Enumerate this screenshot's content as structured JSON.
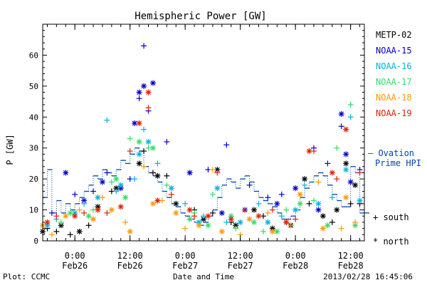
{
  "chart_data": {
    "type": "scatter",
    "title": "Hemispheric Power [GW]",
    "ylabel": "P [GW]",
    "xlabel": "Date and Time",
    "ylim": [
      0,
      70
    ],
    "yticks": [
      0,
      10,
      20,
      30,
      40,
      50,
      60
    ],
    "xlim": [
      "2013-02-25T17:00",
      "2013-02-28T15:00"
    ],
    "xticks": [
      {
        "time": "2013-02-26T00:00",
        "label1": "0:00",
        "label2": "Feb26"
      },
      {
        "time": "2013-02-26T12:00",
        "label1": "12:00",
        "label2": "Feb26"
      },
      {
        "time": "2013-02-27T00:00",
        "label1": "0:00",
        "label2": "Feb27"
      },
      {
        "time": "2013-02-27T12:00",
        "label1": "12:00",
        "label2": "Feb27"
      },
      {
        "time": "2013-02-28T00:00",
        "label1": "0:00",
        "label2": "Feb28"
      },
      {
        "time": "2013-02-28T12:00",
        "label1": "12:00",
        "label2": "Feb28"
      }
    ],
    "legend": {
      "placement": "right",
      "satellites": [
        {
          "name": "METP-02",
          "color": "#000000"
        },
        {
          "name": "NOAA-15",
          "color": "#0000cc"
        },
        {
          "name": "NOAA-16",
          "color": "#00b4dc"
        },
        {
          "name": "NOAA-17",
          "color": "#33dd66"
        },
        {
          "name": "NOAA-18",
          "color": "#ff9900"
        },
        {
          "name": "NOAA-19",
          "color": "#dd2200"
        }
      ],
      "ovation_label_1": "— Ovation",
      "ovation_label_2": "Prime HPI",
      "ovation_color": "#0044aa",
      "south_label": "+ south",
      "north_label": "* north"
    },
    "ovation_prime_hpi": {
      "x": [
        "2013-02-25T17:00",
        "2013-02-25T18:00",
        "2013-02-25T19:00",
        "2013-02-25T20:00",
        "2013-02-25T21:00",
        "2013-02-25T22:00",
        "2013-02-25T23:00",
        "2013-02-26T00:00",
        "2013-02-26T01:00",
        "2013-02-26T02:00",
        "2013-02-26T03:00",
        "2013-02-26T04:00",
        "2013-02-26T05:00",
        "2013-02-26T06:00",
        "2013-02-26T07:00",
        "2013-02-26T08:00",
        "2013-02-26T09:00",
        "2013-02-26T10:00",
        "2013-02-26T11:00",
        "2013-02-26T12:00",
        "2013-02-26T13:00",
        "2013-02-26T14:00",
        "2013-02-26T15:00",
        "2013-02-26T16:00",
        "2013-02-26T17:00",
        "2013-02-26T18:00",
        "2013-02-26T19:00",
        "2013-02-26T20:00",
        "2013-02-26T21:00",
        "2013-02-26T22:00",
        "2013-02-26T23:00",
        "2013-02-27T00:00",
        "2013-02-27T01:00",
        "2013-02-27T02:00",
        "2013-02-27T03:00",
        "2013-02-27T04:00",
        "2013-02-27T05:00",
        "2013-02-27T06:00",
        "2013-02-27T07:00",
        "2013-02-27T08:00",
        "2013-02-27T09:00",
        "2013-02-27T10:00",
        "2013-02-27T11:00",
        "2013-02-27T12:00",
        "2013-02-27T13:00",
        "2013-02-27T14:00",
        "2013-02-27T15:00",
        "2013-02-27T16:00",
        "2013-02-27T17:00",
        "2013-02-27T18:00",
        "2013-02-27T19:00",
        "2013-02-27T20:00",
        "2013-02-27T21:00",
        "2013-02-27T22:00",
        "2013-02-27T23:00",
        "2013-02-28T00:00",
        "2013-02-28T01:00",
        "2013-02-28T02:00",
        "2013-02-28T03:00",
        "2013-02-28T04:00",
        "2013-02-28T05:00",
        "2013-02-28T06:00",
        "2013-02-28T07:00",
        "2013-02-28T08:00",
        "2013-02-28T09:00",
        "2013-02-28T10:00",
        "2013-02-28T11:00",
        "2013-02-28T12:00",
        "2013-02-28T13:00",
        "2013-02-28T14:00",
        "2013-02-28T15:00"
      ],
      "y": [
        14,
        23,
        9,
        13,
        9,
        12,
        10,
        12,
        14,
        16,
        18,
        21,
        20,
        23,
        22,
        21,
        23,
        26,
        25,
        28,
        30,
        29,
        24,
        22,
        21,
        19,
        16,
        14,
        12,
        11,
        9,
        8,
        7,
        6,
        5,
        6,
        8,
        10,
        14,
        18,
        20,
        19,
        17,
        20,
        21,
        19,
        16,
        14,
        13,
        12,
        11,
        9,
        7,
        7,
        8,
        10,
        14,
        17,
        19,
        21,
        22,
        21,
        18,
        15,
        13,
        11,
        11,
        24,
        22,
        9,
        9
      ]
    },
    "series": [
      {
        "name": "METP-02",
        "marker": "south",
        "x": [
          "2013-02-25T18:00",
          "2013-02-25T20:00",
          "2013-02-25T23:00",
          "2013-02-26T03:00",
          "2013-02-26T08:00",
          "2013-02-26T15:00",
          "2013-02-26T17:00",
          "2013-02-26T20:00",
          "2013-02-27T02:00",
          "2013-02-27T06:00",
          "2013-02-27T10:00",
          "2013-02-27T17:00",
          "2013-02-27T22:00",
          "2013-02-28T03:00",
          "2013-02-28T08:00",
          "2013-02-28T12:00",
          "2013-02-28T14:00"
        ],
        "y": [
          4,
          3,
          2,
          5,
          16,
          29,
          22,
          21,
          10,
          9,
          6,
          8,
          6,
          12,
          6,
          12,
          12
        ]
      },
      {
        "name": "METP-02",
        "marker": "north",
        "x": [
          "2013-02-25T17:00",
          "2013-02-25T21:00",
          "2013-02-26T01:00",
          "2013-02-26T05:00",
          "2013-02-26T09:00",
          "2013-02-26T14:00",
          "2013-02-26T18:00",
          "2013-02-26T22:00",
          "2013-02-27T04:00",
          "2013-02-27T07:00",
          "2013-02-27T11:00",
          "2013-02-27T15:00",
          "2013-02-27T19:00",
          "2013-02-27T23:00",
          "2013-02-28T02:00",
          "2013-02-28T06:00",
          "2013-02-28T09:00",
          "2013-02-28T11:00",
          "2013-02-28T13:00"
        ],
        "y": [
          3,
          5,
          3,
          11,
          17,
          25,
          21,
          12,
          7,
          23,
          5,
          10,
          4,
          5,
          20,
          8,
          10,
          25,
          18
        ]
      },
      {
        "name": "NOAA-15",
        "marker": "south",
        "x": [
          "2013-02-25T19:00",
          "2013-02-26T00:00",
          "2013-02-26T04:00",
          "2013-02-26T07:00",
          "2013-02-26T12:00",
          "2013-02-26T14:00",
          "2013-02-26T15:00",
          "2013-02-26T16:00",
          "2013-02-26T20:00",
          "2013-02-27T05:00",
          "2013-02-27T09:00",
          "2013-02-27T14:00",
          "2013-02-27T18:00",
          "2013-02-27T21:00",
          "2013-02-28T04:00",
          "2013-02-28T07:00",
          "2013-02-28T10:00",
          "2013-02-28T14:00"
        ],
        "y": [
          9,
          15,
          16,
          22,
          20,
          46,
          63,
          42,
          32,
          23,
          31,
          18,
          14,
          15,
          30,
          25,
          37,
          23
        ]
      },
      {
        "name": "NOAA-15",
        "marker": "north",
        "x": [
          "2013-02-25T22:00",
          "2013-02-26T02:00",
          "2013-02-26T06:00",
          "2013-02-26T10:00",
          "2013-02-26T13:00",
          "2013-02-26T14:00",
          "2013-02-26T15:00",
          "2013-02-26T17:00",
          "2013-02-27T01:00",
          "2013-02-27T08:00",
          "2013-02-27T13:00",
          "2013-02-27T20:00",
          "2013-02-28T00:00",
          "2013-02-28T05:00",
          "2013-02-28T10:00",
          "2013-02-28T11:00",
          "2013-02-28T12:00"
        ],
        "y": [
          22,
          13,
          19,
          17,
          38,
          48,
          50,
          51,
          22,
          9,
          10,
          12,
          17,
          10,
          41,
          28,
          19
        ]
      },
      {
        "name": "NOAA-16",
        "marker": "south",
        "x": [
          "2013-02-25T20:00",
          "2013-02-26T02:00",
          "2013-02-26T07:00",
          "2013-02-26T09:00",
          "2013-02-26T13:00",
          "2013-02-26T15:00",
          "2013-02-26T18:00",
          "2013-02-27T00:00",
          "2013-02-27T04:00",
          "2013-02-27T09:00",
          "2013-02-27T16:00",
          "2013-02-27T21:00",
          "2013-02-28T02:00",
          "2013-02-28T08:00",
          "2013-02-28T12:00"
        ],
        "y": [
          7,
          12,
          39,
          16,
          20,
          36,
          25,
          12,
          8,
          6,
          12,
          8,
          18,
          14,
          40
        ]
      },
      {
        "name": "NOAA-16",
        "marker": "north",
        "x": [
          "2013-02-25T18:00",
          "2013-02-26T00:00",
          "2013-02-26T05:00",
          "2013-02-26T10:00",
          "2013-02-26T14:00",
          "2013-02-26T16:00",
          "2013-02-26T21:00",
          "2013-02-27T03:00",
          "2013-02-27T07:00",
          "2013-02-27T12:00",
          "2013-02-27T18:00",
          "2013-02-28T00:00",
          "2013-02-28T05:00",
          "2013-02-28T11:00",
          "2013-02-28T14:00"
        ],
        "y": [
          5,
          9,
          14,
          18,
          28,
          32,
          17,
          6,
          17,
          6,
          6,
          10,
          12,
          23,
          13
        ]
      },
      {
        "name": "NOAA-17",
        "marker": "south",
        "x": [
          "2013-02-25T21:00",
          "2013-02-26T04:00",
          "2013-02-26T08:00",
          "2013-02-26T12:00",
          "2013-02-26T16:00",
          "2013-02-26T20:00",
          "2013-02-27T02:00",
          "2013-02-27T06:00",
          "2013-02-27T11:00",
          "2013-02-27T17:00",
          "2013-02-27T22:00",
          "2013-02-28T04:00",
          "2013-02-28T09:00",
          "2013-02-28T12:00"
        ],
        "y": [
          6,
          10,
          19,
          33,
          30,
          18,
          9,
          15,
          4,
          3,
          10,
          13,
          30,
          44
        ]
      },
      {
        "name": "NOAA-17",
        "marker": "north",
        "x": [
          "2013-02-25T23:00",
          "2013-02-26T03:00",
          "2013-02-26T09:00",
          "2013-02-26T11:00",
          "2013-02-26T14:00",
          "2013-02-26T17:00",
          "2013-02-27T01:00",
          "2013-02-27T05:00",
          "2013-02-27T10:00",
          "2013-02-27T15:00",
          "2013-02-27T20:00",
          "2013-02-28T01:00",
          "2013-02-28T07:00",
          "2013-02-28T13:00"
        ],
        "y": [
          9,
          8,
          20,
          14,
          32,
          30,
          7,
          5,
          8,
          6,
          3,
          12,
          5,
          5
        ]
      },
      {
        "name": "NOAA-18",
        "marker": "south",
        "x": [
          "2013-02-25T19:00",
          "2013-02-26T01:00",
          "2013-02-26T06:00",
          "2013-02-26T11:00",
          "2013-02-26T15:00",
          "2013-02-26T19:00",
          "2013-02-27T00:00",
          "2013-02-27T06:00",
          "2013-02-27T12:00",
          "2013-02-27T18:00",
          "2013-02-27T23:00",
          "2013-02-28T05:00",
          "2013-02-28T10:00",
          "2013-02-28T13:00"
        ],
        "y": [
          2,
          10,
          14,
          6,
          24,
          13,
          4,
          23,
          2,
          9,
          5,
          19,
          4,
          6
        ]
      },
      {
        "name": "NOAA-18",
        "marker": "north",
        "x": [
          "2013-02-25T17:00",
          "2013-02-25T22:00",
          "2013-02-26T04:00",
          "2013-02-26T08:00",
          "2013-02-26T12:00",
          "2013-02-26T17:00",
          "2013-02-26T22:00",
          "2013-02-27T03:00",
          "2013-02-27T08:00",
          "2013-02-27T14:00",
          "2013-02-27T19:00",
          "2013-02-28T01:00",
          "2013-02-28T06:00",
          "2013-02-28T11:00"
        ],
        "y": [
          5,
          8,
          7,
          10,
          3,
          12,
          9,
          5,
          3,
          7,
          3,
          15,
          4,
          14
        ]
      },
      {
        "name": "NOAA-19",
        "marker": "south",
        "x": [
          "2013-02-25T20:00",
          "2013-02-26T02:00",
          "2013-02-26T07:00",
          "2013-02-26T12:00",
          "2013-02-26T16:00",
          "2013-02-26T21:00",
          "2013-02-27T02:00",
          "2013-02-27T07:00",
          "2013-02-27T13:00",
          "2013-02-27T19:00",
          "2013-02-28T00:00",
          "2013-02-28T04:00",
          "2013-02-28T09:00",
          "2013-02-28T14:00"
        ],
        "y": [
          8,
          9,
          9,
          29,
          43,
          15,
          8,
          22,
          10,
          10,
          7,
          29,
          20,
          22
        ]
      },
      {
        "name": "NOAA-19",
        "marker": "north",
        "x": [
          "2013-02-25T18:00",
          "2013-02-26T00:00",
          "2013-02-26T05:00",
          "2013-02-26T10:00",
          "2013-02-26T14:00",
          "2013-02-26T16:00",
          "2013-02-26T18:00",
          "2013-02-27T01:00",
          "2013-02-27T05:00",
          "2013-02-27T10:00",
          "2013-02-27T16:00",
          "2013-02-27T22:00",
          "2013-02-28T03:00",
          "2013-02-28T08:00",
          "2013-02-28T11:00"
        ],
        "y": [
          6,
          8,
          10,
          11,
          38,
          48,
          13,
          10,
          8,
          7,
          8,
          6,
          29,
          22,
          36
        ]
      }
    ]
  },
  "footer": {
    "plot_credit": "Plot: CCMC",
    "timestamp": "2013/02/28 16:45:06"
  }
}
